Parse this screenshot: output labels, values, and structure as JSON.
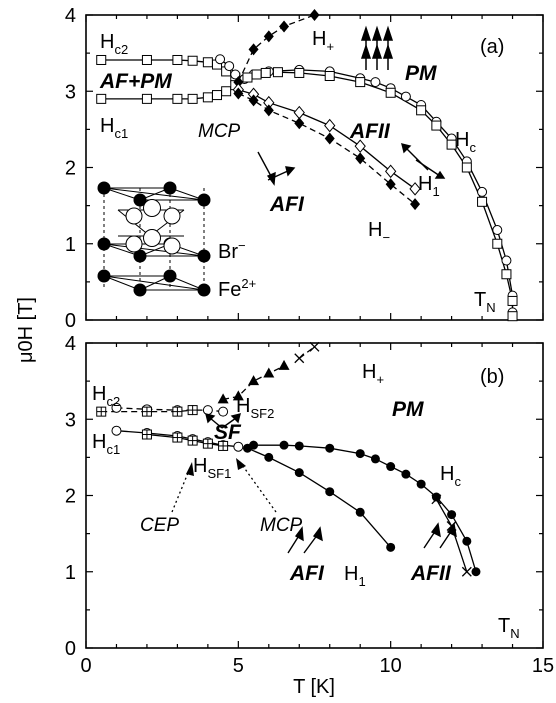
{
  "chart_data": [
    {
      "type": "scatter",
      "panel_label": "(a)",
      "xlim": [
        0,
        15
      ],
      "ylim": [
        0,
        4
      ],
      "x_ticks": [
        "0",
        "5",
        "10",
        "15"
      ],
      "y_ticks": [
        "0",
        "1",
        "2",
        "3",
        "4"
      ],
      "series": [
        {
          "marker": "square",
          "line": "solid",
          "points": [
            [
              0.5,
              3.41
            ],
            [
              2,
              3.41
            ],
            [
              3,
              3.41
            ],
            [
              3.5,
              3.4
            ],
            [
              4,
              3.38
            ],
            [
              4.3,
              3.35
            ],
            [
              4.6,
              3.26
            ],
            [
              4.9,
              3.18
            ]
          ]
        },
        {
          "marker": "square",
          "line": "solid",
          "points": [
            [
              0.5,
              2.9
            ],
            [
              2,
              2.9
            ],
            [
              3,
              2.9
            ],
            [
              3.5,
              2.9
            ],
            [
              4,
              2.92
            ],
            [
              4.3,
              2.95
            ],
            [
              4.6,
              3.0
            ],
            [
              4.9,
              3.08
            ]
          ]
        },
        {
          "marker": "circle",
          "line": "solid",
          "points": [
            [
              4.4,
              3.42
            ],
            [
              4.7,
              3.33
            ],
            [
              4.9,
              3.22
            ],
            [
              5.2,
              3.16
            ],
            [
              5.5,
              3.22
            ],
            [
              6,
              3.26
            ],
            [
              7,
              3.28
            ],
            [
              8,
              3.26
            ],
            [
              9,
              3.17
            ],
            [
              9.5,
              3.12
            ],
            [
              10,
              3.04
            ],
            [
              10.5,
              2.93
            ],
            [
              11,
              2.82
            ],
            [
              11.5,
              2.6
            ],
            [
              12,
              2.38
            ],
            [
              12.5,
              2.08
            ],
            [
              13,
              1.68
            ],
            [
              13.5,
              1.18
            ],
            [
              13.8,
              0.78
            ],
            [
              14,
              0.32
            ],
            [
              14,
              0.1
            ]
          ]
        },
        {
          "marker": "square",
          "line": "solid",
          "points": [
            [
              5.3,
              3.18
            ],
            [
              5.6,
              3.22
            ],
            [
              5.9,
              3.24
            ],
            [
              6.3,
              3.25
            ],
            [
              7,
              3.24
            ],
            [
              8,
              3.2
            ],
            [
              9,
              3.12
            ],
            [
              10,
              2.98
            ],
            [
              11,
              2.75
            ],
            [
              11.5,
              2.55
            ],
            [
              12,
              2.3
            ],
            [
              12.5,
              2.0
            ],
            [
              13,
              1.55
            ],
            [
              13.5,
              1.0
            ],
            [
              13.8,
              0.6
            ],
            [
              14,
              0.25
            ],
            [
              14,
              0.05
            ]
          ]
        },
        {
          "marker": "diamond-filled",
          "line": "dashed",
          "points": [
            [
              5,
              3.12
            ],
            [
              5.5,
              3.55
            ],
            [
              6,
              3.72
            ],
            [
              6.5,
              3.85
            ],
            [
              7.5,
              4.0
            ]
          ]
        },
        {
          "marker": "diamond-open",
          "line": "solid",
          "points": [
            [
              5,
              3.02
            ],
            [
              5.5,
              2.96
            ],
            [
              6,
              2.85
            ],
            [
              7,
              2.72
            ],
            [
              8,
              2.55
            ],
            [
              9,
              2.28
            ],
            [
              10,
              1.95
            ],
            [
              10.8,
              1.72
            ]
          ]
        },
        {
          "marker": "diamond-filled",
          "line": "dashed",
          "points": [
            [
              5,
              2.97
            ],
            [
              5.5,
              2.88
            ],
            [
              6,
              2.75
            ],
            [
              7,
              2.58
            ],
            [
              8,
              2.38
            ],
            [
              9,
              2.12
            ],
            [
              10,
              1.78
            ],
            [
              10.8,
              1.52
            ]
          ]
        }
      ]
    },
    {
      "type": "scatter",
      "panel_label": "(b)",
      "xlabel": "T [K]",
      "xlim": [
        0,
        15
      ],
      "ylim": [
        0,
        4
      ],
      "x_ticks": [
        "0",
        "5",
        "10",
        "15"
      ],
      "y_ticks": [
        "0",
        "1",
        "2",
        "3",
        "4"
      ],
      "series": [
        {
          "marker": "circle-open",
          "line": "dashed",
          "points": [
            [
              1,
              3.15
            ],
            [
              2,
              3.13
            ],
            [
              3,
              3.12
            ],
            [
              3.5,
              3.12
            ],
            [
              4,
              3.12
            ],
            [
              4.5,
              3.1
            ]
          ]
        },
        {
          "marker": "square-cross",
          "line": "dashed",
          "points": [
            [
              0.5,
              3.1
            ],
            [
              2,
              3.1
            ],
            [
              3,
              3.1
            ],
            [
              3.5,
              3.12
            ]
          ]
        },
        {
          "marker": "circle-open",
          "line": "solid",
          "points": [
            [
              1,
              2.85
            ],
            [
              2,
              2.82
            ],
            [
              3,
              2.78
            ],
            [
              3.5,
              2.74
            ],
            [
              4,
              2.7
            ],
            [
              4.5,
              2.66
            ],
            [
              5,
              2.64
            ]
          ]
        },
        {
          "marker": "square-cross",
          "line": "solid",
          "points": [
            [
              2,
              2.8
            ],
            [
              3,
              2.76
            ],
            [
              3.5,
              2.72
            ],
            [
              4,
              2.68
            ],
            [
              4.5,
              2.65
            ]
          ]
        },
        {
          "marker": "triangle-filled",
          "line": "dashed",
          "points": [
            [
              4.5,
              3.26
            ],
            [
              5,
              3.3
            ],
            [
              5.5,
              3.5
            ],
            [
              6,
              3.6
            ],
            [
              6.5,
              3.7
            ]
          ]
        },
        {
          "marker": "x",
          "line": "dashed",
          "points": [
            [
              7,
              3.8
            ],
            [
              7.5,
              3.95
            ]
          ]
        },
        {
          "marker": "circle-filled",
          "line": "solid",
          "points": [
            [
              5.3,
              2.62
            ],
            [
              6,
              2.5
            ],
            [
              7,
              2.3
            ],
            [
              8,
              2.05
            ],
            [
              9,
              1.78
            ],
            [
              10,
              1.32
            ]
          ]
        },
        {
          "marker": "circle-filled",
          "line": "solid",
          "points": [
            [
              5.5,
              2.66
            ],
            [
              6.5,
              2.66
            ],
            [
              7,
              2.65
            ],
            [
              8,
              2.62
            ],
            [
              9,
              2.55
            ],
            [
              9.5,
              2.48
            ],
            [
              10,
              2.38
            ],
            [
              10.5,
              2.28
            ],
            [
              11,
              2.15
            ],
            [
              11.5,
              1.98
            ],
            [
              12,
              1.75
            ],
            [
              12.5,
              1.4
            ],
            [
              12.8,
              1.0
            ]
          ]
        },
        {
          "marker": "x",
          "line": "solid",
          "points": [
            [
              11.5,
              1.95
            ],
            [
              12,
              1.6
            ],
            [
              12.5,
              1.0
            ]
          ]
        }
      ]
    }
  ],
  "figure": {
    "y_axis_label": "μ0H [T]",
    "panel_a": {
      "labels": {
        "hc2_main": "H",
        "hc2_sub": "c2",
        "hc1_main": "H",
        "hc1_sub": "c1",
        "af_pm": "AF+PM",
        "mcp": "MCP",
        "hplus_main": "H",
        "hplus_sub": "+",
        "pm": "PM",
        "afii": "AFII",
        "hc_main": "H",
        "hc_sub": "c",
        "h1_main": "H",
        "h1_sub": "1",
        "hminus_main": "H",
        "hminus_sub": "−",
        "afi": "AFI",
        "br": "Br",
        "br_sup": "−",
        "fe": "Fe",
        "fe_sup": "2+",
        "tn_main": "T",
        "tn_sub": "N"
      }
    },
    "panel_b": {
      "labels": {
        "hc2_main": "H",
        "hc2_sub": "c2",
        "hc1_main": "H",
        "hc1_sub": "c1",
        "hplus_main": "H",
        "hplus_sub": "+",
        "pm": "PM",
        "hsf2_main": "H",
        "hsf2_sub": "SF2",
        "sf": "SF",
        "hsf1_main": "H",
        "hsf1_sub": "SF1",
        "cep": "CEP",
        "mcp": "MCP",
        "hc_main": "H",
        "hc_sub": "c",
        "afi": "AFI",
        "h1_main": "H",
        "h1_sub": "1",
        "afii": "AFII",
        "tn_main": "T",
        "tn_sub": "N"
      }
    }
  }
}
